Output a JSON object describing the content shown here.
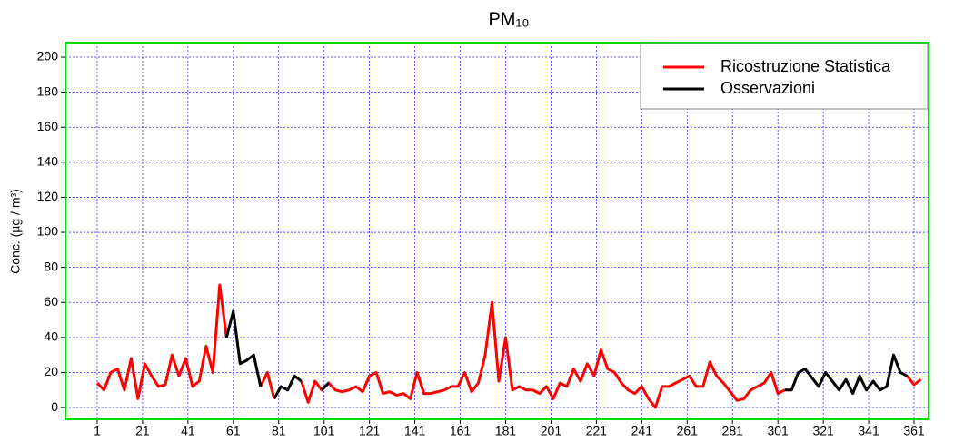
{
  "chart_data": {
    "type": "line",
    "title": "PM₁₀",
    "y_label": "Conc. (µg / m³)",
    "x": [
      1,
      4,
      7,
      10,
      13,
      16,
      19,
      22,
      25,
      28,
      31,
      34,
      37,
      40,
      43,
      46,
      49,
      52,
      55,
      58,
      61,
      64,
      67,
      70,
      73,
      76,
      79,
      82,
      85,
      88,
      91,
      94,
      97,
      100,
      103,
      106,
      109,
      112,
      115,
      118,
      121,
      124,
      127,
      130,
      133,
      136,
      139,
      142,
      145,
      148,
      151,
      154,
      157,
      160,
      163,
      166,
      169,
      172,
      175,
      178,
      181,
      184,
      187,
      190,
      193,
      196,
      199,
      202,
      205,
      208,
      211,
      214,
      217,
      220,
      223,
      226,
      229,
      232,
      235,
      238,
      241,
      244,
      247,
      250,
      253,
      256,
      259,
      262,
      265,
      268,
      271,
      274,
      277,
      280,
      283,
      286,
      289,
      292,
      295,
      298,
      301,
      304,
      307,
      310,
      313,
      316,
      319,
      322,
      325,
      328,
      331,
      334,
      337,
      340,
      343,
      346,
      349,
      352,
      355,
      358,
      361,
      364
    ],
    "series": [
      {
        "name": "Ricostruzione Statistica",
        "color": "#ff0000",
        "values": [
          14,
          10,
          20,
          22,
          10,
          28,
          5,
          25,
          18,
          12,
          13,
          30,
          18,
          28,
          12,
          15,
          35,
          20,
          70,
          40,
          null,
          null,
          null,
          null,
          12,
          20,
          5,
          null,
          null,
          null,
          15,
          3,
          15,
          10,
          14,
          10,
          9,
          10,
          12,
          9,
          18,
          20,
          8,
          9,
          7,
          8,
          5,
          20,
          8,
          8,
          9,
          10,
          12,
          12,
          20,
          9,
          14,
          30,
          60,
          15,
          40,
          10,
          12,
          10,
          10,
          8,
          12,
          5,
          14,
          12,
          22,
          15,
          25,
          18,
          33,
          22,
          20,
          14,
          10,
          8,
          12,
          5,
          0,
          12,
          12,
          14,
          16,
          18,
          12,
          12,
          26,
          18,
          14,
          9,
          4,
          5,
          10,
          12,
          14,
          20,
          8,
          10,
          null,
          null,
          null,
          null,
          null,
          null,
          null,
          null,
          null,
          null,
          null,
          null,
          null,
          null,
          null,
          null,
          null,
          18,
          13,
          16
        ]
      },
      {
        "name": "Osservazioni",
        "color": "#000000",
        "values": [
          null,
          null,
          null,
          null,
          null,
          null,
          null,
          null,
          null,
          null,
          null,
          null,
          null,
          null,
          null,
          null,
          null,
          null,
          null,
          40,
          55,
          25,
          27,
          30,
          12,
          null,
          5,
          12,
          10,
          18,
          15,
          null,
          null,
          10,
          14,
          null,
          null,
          null,
          null,
          null,
          null,
          null,
          null,
          null,
          null,
          null,
          null,
          null,
          null,
          null,
          null,
          null,
          null,
          null,
          null,
          null,
          null,
          null,
          null,
          null,
          null,
          null,
          null,
          null,
          null,
          null,
          null,
          null,
          null,
          null,
          null,
          null,
          null,
          null,
          null,
          null,
          null,
          null,
          null,
          null,
          null,
          null,
          null,
          null,
          null,
          null,
          null,
          null,
          null,
          null,
          null,
          null,
          null,
          null,
          null,
          null,
          null,
          null,
          null,
          null,
          null,
          10,
          10,
          20,
          22,
          17,
          12,
          20,
          15,
          10,
          16,
          8,
          18,
          10,
          15,
          10,
          12,
          30,
          20,
          18,
          null,
          null
        ]
      }
    ],
    "xlim": [
      -13,
      367.4
    ],
    "ylim": [
      -6.7,
      208.3
    ],
    "xticks": [
      1,
      21,
      41,
      61,
      81,
      101,
      121,
      141,
      161,
      181,
      201,
      221,
      241,
      261,
      281,
      301,
      321,
      341,
      361
    ],
    "yticks": [
      0,
      20,
      40,
      60,
      80,
      100,
      120,
      140,
      160,
      180,
      200
    ],
    "grid": true,
    "grid_color": "#3333ff",
    "frame_color": "#00dd00",
    "legend": "upper right"
  }
}
